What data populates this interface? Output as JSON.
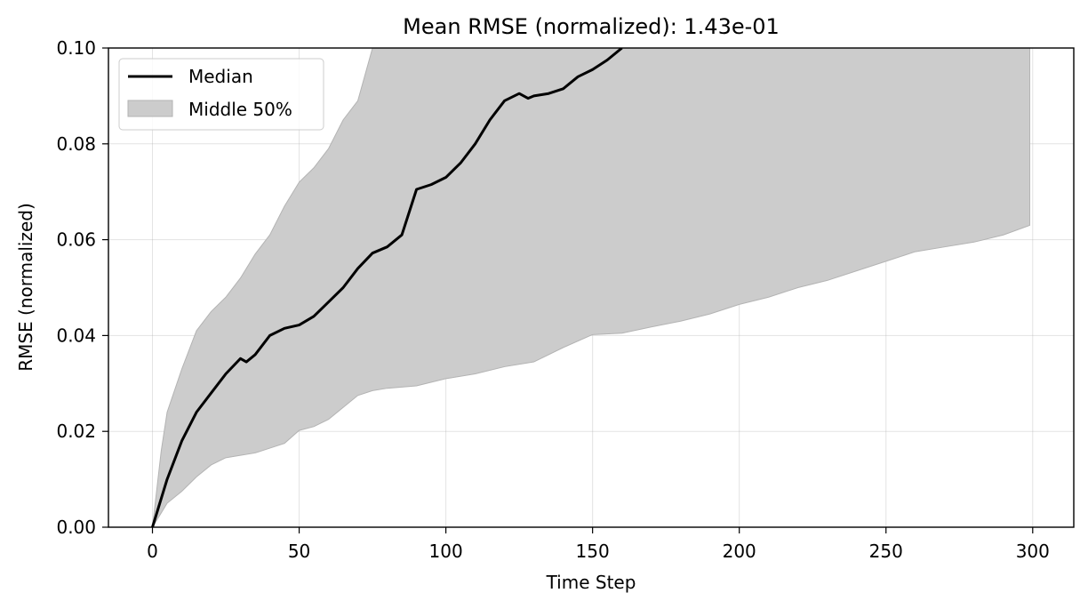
{
  "chart_data": {
    "type": "line",
    "title": "Mean RMSE (normalized): 1.43e-01",
    "xlabel": "Time Step",
    "ylabel": "RMSE (normalized)",
    "xlim": [
      -15,
      314
    ],
    "ylim": [
      0,
      0.1
    ],
    "x_ticks": [
      0,
      50,
      100,
      150,
      200,
      250,
      300
    ],
    "y_ticks": [
      0.0,
      0.02,
      0.04,
      0.06,
      0.08,
      0.1
    ],
    "x_tick_labels": [
      "0",
      "50",
      "100",
      "150",
      "200",
      "250",
      "300"
    ],
    "y_tick_labels": [
      "0.00",
      "0.02",
      "0.04",
      "0.06",
      "0.08",
      "0.10"
    ],
    "grid": true,
    "legend_position": "top-left",
    "series": [
      {
        "name": "Median",
        "kind": "line",
        "color": "#000000",
        "x": [
          0,
          5,
          10,
          15,
          20,
          25,
          30,
          32,
          35,
          40,
          45,
          50,
          55,
          60,
          65,
          70,
          75,
          80,
          85,
          90,
          95,
          100,
          105,
          110,
          115,
          120,
          125,
          128,
          130,
          135,
          140,
          145,
          150,
          155,
          160
        ],
        "y": [
          0.0,
          0.01,
          0.018,
          0.024,
          0.028,
          0.032,
          0.0352,
          0.0345,
          0.036,
          0.04,
          0.0415,
          0.0422,
          0.044,
          0.047,
          0.05,
          0.054,
          0.0572,
          0.0585,
          0.061,
          0.0705,
          0.0715,
          0.073,
          0.076,
          0.08,
          0.085,
          0.089,
          0.0905,
          0.0895,
          0.09,
          0.0905,
          0.0915,
          0.094,
          0.0955,
          0.0975,
          0.1
        ]
      },
      {
        "name": "Middle 50%",
        "kind": "band",
        "color": "#cccccc",
        "edge_color": "#b3b3b3",
        "x": [
          0,
          3,
          5,
          10,
          15,
          20,
          25,
          30,
          35,
          40,
          45,
          50,
          55,
          60,
          65,
          70,
          75,
          80,
          90,
          100,
          110,
          120,
          130,
          140,
          150,
          160,
          170,
          180,
          190,
          200,
          210,
          220,
          230,
          240,
          250,
          260,
          270,
          280,
          290,
          299
        ],
        "lower": [
          0.0,
          0.003,
          0.005,
          0.0075,
          0.0105,
          0.013,
          0.0145,
          0.015,
          0.0155,
          0.0165,
          0.0175,
          0.0202,
          0.021,
          0.0225,
          0.025,
          0.0275,
          0.0285,
          0.029,
          0.0295,
          0.031,
          0.032,
          0.0335,
          0.0345,
          0.0375,
          0.0402,
          0.0405,
          0.0418,
          0.043,
          0.0445,
          0.0465,
          0.048,
          0.05,
          0.0515,
          0.0535,
          0.0555,
          0.0575,
          0.0585,
          0.0595,
          0.061,
          0.063
        ],
        "upper": [
          0.0,
          0.016,
          0.024,
          0.033,
          0.041,
          0.045,
          0.048,
          0.052,
          0.057,
          0.061,
          0.067,
          0.072,
          0.075,
          0.079,
          0.085,
          0.089,
          0.1,
          0.1,
          0.1,
          0.1,
          0.1,
          0.1,
          0.1,
          0.1,
          0.1,
          0.1,
          0.1,
          0.1,
          0.1,
          0.1,
          0.1,
          0.1,
          0.1,
          0.1,
          0.1,
          0.1,
          0.1,
          0.1,
          0.1,
          0.1
        ]
      }
    ]
  }
}
